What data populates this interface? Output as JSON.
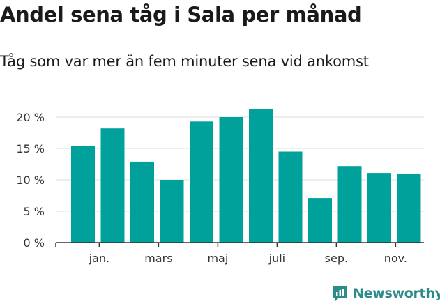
{
  "chart_data": {
    "type": "bar",
    "title": "Andel sena tåg i Sala per månad",
    "subtitle": "Tåg som var mer än fem minuter sena vid ankomst",
    "values": [
      15.4,
      18.2,
      12.9,
      10.0,
      19.3,
      20.0,
      21.3,
      14.5,
      7.1,
      12.2,
      11.1,
      10.9
    ],
    "x_tick_labels": [
      "jan.",
      "mars",
      "maj",
      "juli",
      "sep.",
      "nov."
    ],
    "x_tick_bar_index": [
      1,
      3,
      5,
      7,
      9,
      11
    ],
    "y_ticks": [
      0,
      5,
      10,
      15,
      20
    ],
    "y_tick_labels": [
      "0 %",
      "5 %",
      "10 %",
      "15 %",
      "20 %"
    ],
    "ylim": [
      0,
      22
    ],
    "grid": true,
    "bar_color": "#00a19a"
  },
  "brand": {
    "name": "Newsworthy",
    "color": "#2e8b8b",
    "icon": "newsworthy-logo-icon"
  }
}
